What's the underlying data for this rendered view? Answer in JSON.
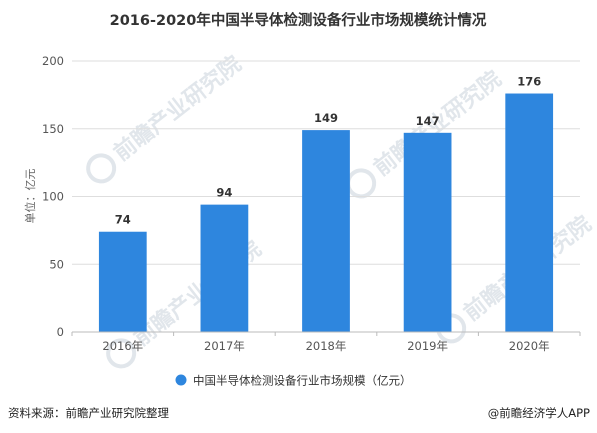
{
  "colors": {
    "bar": "#2e86de",
    "watermark": "#c9d3dc"
  },
  "watermark": {
    "text": "前瞻产业研究院",
    "icon": "qianzhan-logo-icon"
  },
  "chart_data": {
    "type": "bar",
    "title": "2016-2020年中国半导体检测设备行业市场规模统计情况",
    "ylabel": "单位：亿元",
    "xlabel": "",
    "categories": [
      "2016年",
      "2017年",
      "2018年",
      "2019年",
      "2020年"
    ],
    "series": [
      {
        "name": "中国半导体检测设备行业市场规模（亿元）",
        "values": [
          74,
          94,
          149,
          147,
          176
        ]
      }
    ],
    "data_labels": [
      "74",
      "94",
      "149",
      "147",
      "176"
    ],
    "ylim": [
      0,
      200
    ],
    "yticks": [
      0,
      50,
      100,
      150,
      200
    ],
    "ytick_labels": [
      "0",
      "50",
      "100",
      "150",
      "200"
    ],
    "grid": true,
    "legend_position": "bottom"
  },
  "footer": {
    "source": "资料来源：前瞻产业研究院整理",
    "brand": "@前瞻经济学人APP"
  }
}
